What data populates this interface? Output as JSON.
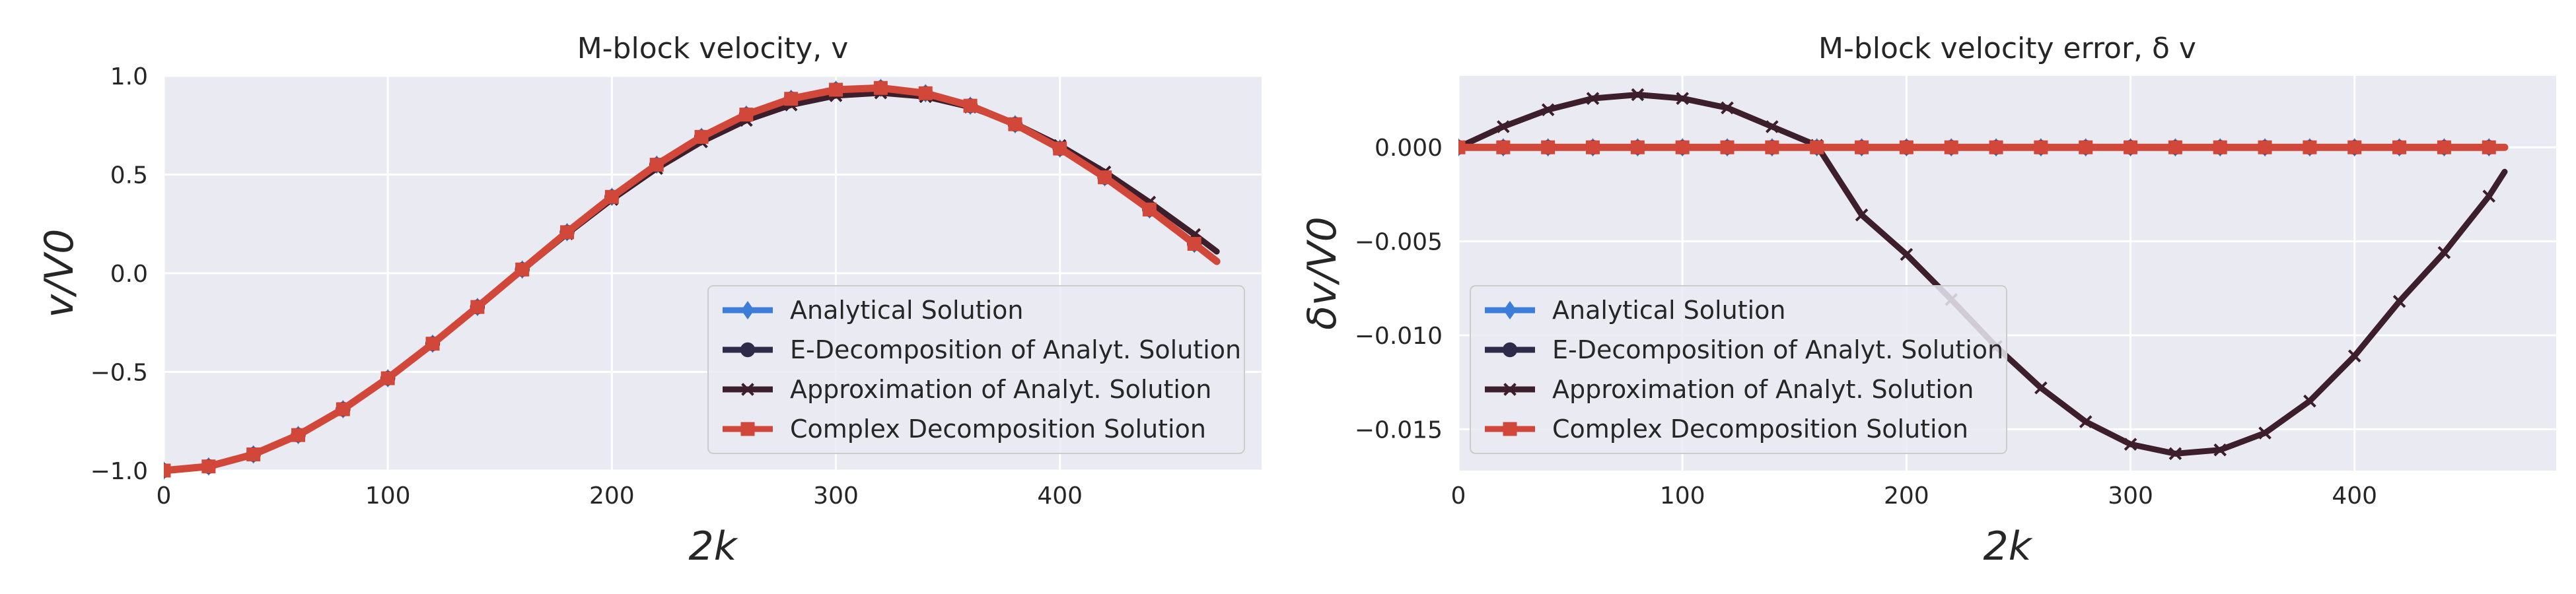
{
  "chart_data": [
    {
      "type": "line",
      "title": "M-block velocity, v",
      "xlabel": "2k",
      "ylabel": "v/V0",
      "xlim": [
        0,
        490
      ],
      "ylim": [
        -1.0,
        1.0
      ],
      "x_ticks": [
        0,
        100,
        200,
        300,
        400
      ],
      "x_tick_labels": [
        "0",
        "100",
        "200",
        "300",
        "400"
      ],
      "y_ticks": [
        -1.0,
        -0.5,
        0.0,
        0.5,
        1.0
      ],
      "y_tick_labels": [
        "−1.0",
        "−0.5",
        "0.0",
        "0.5",
        "1.0"
      ],
      "grid": true,
      "legend_position": "lower-right",
      "x": [
        0,
        20,
        40,
        60,
        80,
        100,
        120,
        140,
        160,
        180,
        200,
        220,
        240,
        260,
        280,
        300,
        320,
        340,
        360,
        380,
        400,
        420,
        440,
        460,
        470
      ],
      "series": [
        {
          "name": "Analytical Solution",
          "color": "#3b7dd8",
          "marker": "diamond",
          "values": [
            -1.0,
            -0.979,
            -0.918,
            -0.82,
            -0.689,
            -0.532,
            -0.357,
            -0.171,
            0.019,
            0.208,
            0.387,
            0.55,
            0.691,
            0.804,
            0.884,
            0.93,
            0.939,
            0.912,
            0.849,
            0.755,
            0.632,
            0.486,
            0.323,
            0.149,
            0.06
          ]
        },
        {
          "name": "E-Decomposition of Analyt. Solution",
          "color": "#2d2a4a",
          "marker": "circle",
          "values": [
            -1.0,
            -0.979,
            -0.918,
            -0.82,
            -0.689,
            -0.532,
            -0.357,
            -0.171,
            0.019,
            0.208,
            0.387,
            0.55,
            0.691,
            0.804,
            0.884,
            0.93,
            0.939,
            0.912,
            0.849,
            0.755,
            0.632,
            0.486,
            0.323,
            0.149,
            0.06
          ]
        },
        {
          "name": "Approximation of Analyt. Solution",
          "color": "#3d1f2c",
          "marker": "x",
          "values": [
            -1.0,
            -0.978,
            -0.916,
            -0.817,
            -0.686,
            -0.529,
            -0.355,
            -0.171,
            0.016,
            0.2,
            0.374,
            0.531,
            0.666,
            0.775,
            0.853,
            0.9,
            0.914,
            0.895,
            0.842,
            0.758,
            0.647,
            0.513,
            0.36,
            0.196,
            0.11
          ]
        },
        {
          "name": "Complex Decomposition Solution",
          "color": "#d1483a",
          "marker": "square",
          "values": [
            -1.0,
            -0.979,
            -0.918,
            -0.82,
            -0.689,
            -0.532,
            -0.357,
            -0.171,
            0.019,
            0.208,
            0.387,
            0.55,
            0.691,
            0.804,
            0.884,
            0.93,
            0.939,
            0.912,
            0.849,
            0.755,
            0.632,
            0.486,
            0.323,
            0.149,
            0.06
          ]
        }
      ]
    },
    {
      "type": "line",
      "title": "M-block velocity error, δ v",
      "xlabel": "2k",
      "ylabel": "δv/V0",
      "xlim": [
        0,
        490
      ],
      "ylim": [
        -0.0172,
        0.0038
      ],
      "x_ticks": [
        0,
        100,
        200,
        300,
        400
      ],
      "x_tick_labels": [
        "0",
        "100",
        "200",
        "300",
        "400"
      ],
      "y_ticks": [
        -0.015,
        -0.01,
        -0.005,
        0.0
      ],
      "y_tick_labels": [
        "−0.015",
        "−0.010",
        "−0.005",
        "0.000"
      ],
      "grid": true,
      "legend_position": "lower-left",
      "x": [
        0,
        20,
        40,
        60,
        80,
        100,
        120,
        140,
        160,
        180,
        200,
        220,
        240,
        260,
        280,
        300,
        320,
        340,
        360,
        380,
        400,
        420,
        440,
        460,
        467
      ],
      "series": [
        {
          "name": "Analytical Solution",
          "color": "#3b7dd8",
          "marker": "diamond",
          "values": [
            0,
            0,
            0,
            0,
            0,
            0,
            0,
            0,
            0,
            0,
            0,
            0,
            0,
            0,
            0,
            0,
            0,
            0,
            0,
            0,
            0,
            0,
            0,
            0,
            0
          ]
        },
        {
          "name": "E-Decomposition of Analyt. Solution",
          "color": "#2d2a4a",
          "marker": "circle",
          "values": [
            0,
            0,
            0,
            0,
            0,
            0,
            0,
            0,
            0,
            0,
            0,
            0,
            0,
            0,
            0,
            0,
            0,
            0,
            0,
            0,
            0,
            0,
            0,
            0,
            0
          ]
        },
        {
          "name": "Approximation of Analyt. Solution",
          "color": "#3d1f2c",
          "marker": "x",
          "values": [
            0,
            0.0011,
            0.002,
            0.0026,
            0.0028,
            0.0026,
            0.0021,
            0.0011,
            0.0001,
            -0.0036,
            -0.0057,
            -0.0081,
            -0.0106,
            -0.0128,
            -0.0146,
            -0.0158,
            -0.0163,
            -0.0161,
            -0.0152,
            -0.0135,
            -0.0111,
            -0.0082,
            -0.0056,
            -0.0026,
            -0.0013
          ]
        },
        {
          "name": "Complex Decomposition Solution",
          "color": "#d1483a",
          "marker": "square",
          "values": [
            0,
            0,
            0,
            0,
            0,
            0,
            0,
            0,
            0,
            0,
            0,
            0,
            0,
            0,
            0,
            0,
            0,
            0,
            0,
            0,
            0,
            0,
            0,
            0,
            0
          ]
        }
      ]
    }
  ]
}
